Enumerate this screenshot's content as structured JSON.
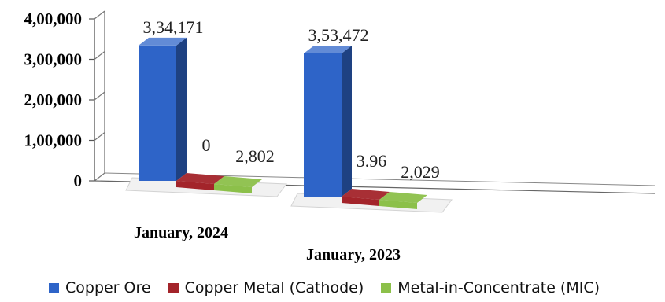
{
  "chart_data": {
    "type": "bar",
    "categories": [
      "January, 2024",
      "January, 2023"
    ],
    "series": [
      {
        "name": "Copper Ore",
        "values": [
          334171,
          353472
        ],
        "labels": [
          "3,34,171",
          "3,53,472"
        ],
        "color": "#2e64c8"
      },
      {
        "name": "Copper Metal (Cathode)",
        "values": [
          0,
          3.96
        ],
        "labels": [
          "0",
          "3.96"
        ],
        "color": "#a3242a"
      },
      {
        "name": "Metal-in-Concentrate (MIC)",
        "values": [
          2802,
          2029
        ],
        "labels": [
          "2,802",
          "2,029"
        ],
        "color": "#8cc04a"
      }
    ],
    "ylim": [
      0,
      400000
    ],
    "yticks": [
      {
        "value": 0,
        "label": "0"
      },
      {
        "value": 100000,
        "label": "1,00,000"
      },
      {
        "value": 200000,
        "label": "2,00,000"
      },
      {
        "value": 300000,
        "label": "3,00,000"
      },
      {
        "value": 400000,
        "label": "4,00,000"
      }
    ],
    "title": "",
    "xlabel": "",
    "ylabel": "",
    "legend_position": "bottom",
    "grid": false,
    "style": "3d-column"
  }
}
